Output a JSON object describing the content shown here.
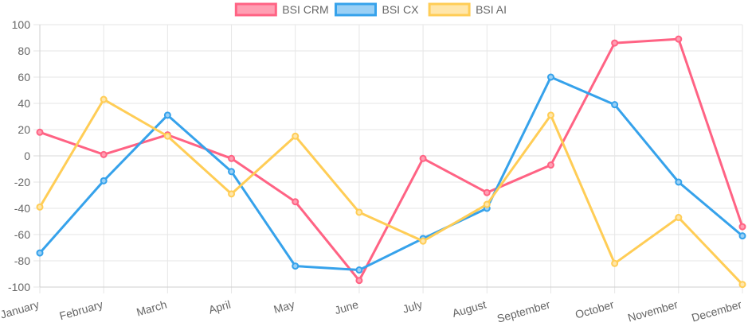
{
  "chart_data": {
    "type": "line",
    "categories": [
      "January",
      "February",
      "March",
      "April",
      "May",
      "June",
      "July",
      "August",
      "September",
      "October",
      "November",
      "December"
    ],
    "series": [
      {
        "name": "BSI CRM",
        "color": "#ff6384",
        "fill": "#ff9fb3",
        "values": [
          18,
          1,
          16,
          -2,
          -35,
          -95,
          -2,
          -28,
          -7,
          86,
          89,
          -54
        ]
      },
      {
        "name": "BSI CX",
        "color": "#36a2eb",
        "fill": "#9ad0f5",
        "values": [
          -74,
          -19,
          31,
          -12,
          -84,
          -87,
          -63,
          -40,
          60,
          39,
          -20,
          -61
        ]
      },
      {
        "name": "BSI AI",
        "color": "#ffcd56",
        "fill": "#ffe6aa",
        "values": [
          -39,
          43,
          15,
          -29,
          15,
          -43,
          -65,
          -37,
          31,
          -82,
          -47,
          -98
        ]
      }
    ],
    "ylim": [
      -100,
      100
    ],
    "yticks": [
      "100",
      "80",
      "60",
      "40",
      "20",
      "0",
      "-20",
      "-40",
      "-60",
      "-80",
      "-100"
    ],
    "grid": true,
    "legend_position": "top"
  }
}
